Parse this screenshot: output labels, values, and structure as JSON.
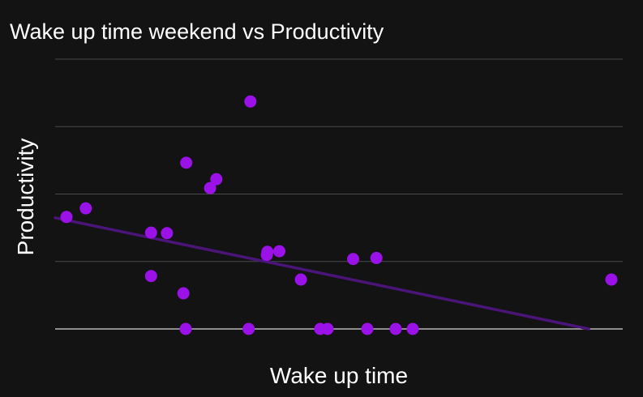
{
  "chart_data": {
    "type": "scatter",
    "title": "Wake up time weekend vs Productivity",
    "xlabel": "Wake up time",
    "ylabel": "Productivity",
    "xlim": [
      0,
      1
    ],
    "ylim": [
      0,
      1
    ],
    "yticks": [
      0,
      0.25,
      0.5,
      0.75,
      1.0
    ],
    "grid": true,
    "points": [
      {
        "x": 0.02,
        "y": 0.415
      },
      {
        "x": 0.054,
        "y": 0.447
      },
      {
        "x": 0.169,
        "y": 0.196
      },
      {
        "x": 0.169,
        "y": 0.357
      },
      {
        "x": 0.197,
        "y": 0.355
      },
      {
        "x": 0.226,
        "y": 0.132
      },
      {
        "x": 0.23,
        "y": 0.0
      },
      {
        "x": 0.231,
        "y": 0.616
      },
      {
        "x": 0.273,
        "y": 0.522
      },
      {
        "x": 0.284,
        "y": 0.555
      },
      {
        "x": 0.341,
        "y": 0.0
      },
      {
        "x": 0.344,
        "y": 0.843
      },
      {
        "x": 0.373,
        "y": 0.274
      },
      {
        "x": 0.374,
        "y": 0.286
      },
      {
        "x": 0.395,
        "y": 0.288
      },
      {
        "x": 0.433,
        "y": 0.183
      },
      {
        "x": 0.467,
        "y": 0.0
      },
      {
        "x": 0.48,
        "y": 0.0
      },
      {
        "x": 0.525,
        "y": 0.259
      },
      {
        "x": 0.55,
        "y": 0.0
      },
      {
        "x": 0.566,
        "y": 0.263
      },
      {
        "x": 0.6,
        "y": 0.0
      },
      {
        "x": 0.63,
        "y": 0.0
      },
      {
        "x": 0.98,
        "y": 0.183
      }
    ],
    "trendline": [
      {
        "x": 0.0,
        "y": 0.412
      },
      {
        "x": 0.94,
        "y": 0.0
      }
    ],
    "colors": {
      "point": "#9b12e8",
      "trendline": "#4b1478",
      "grid": "#4a4a4a",
      "axis": "#d8d8d8",
      "background": "#121312",
      "text": "#ffffff"
    }
  }
}
